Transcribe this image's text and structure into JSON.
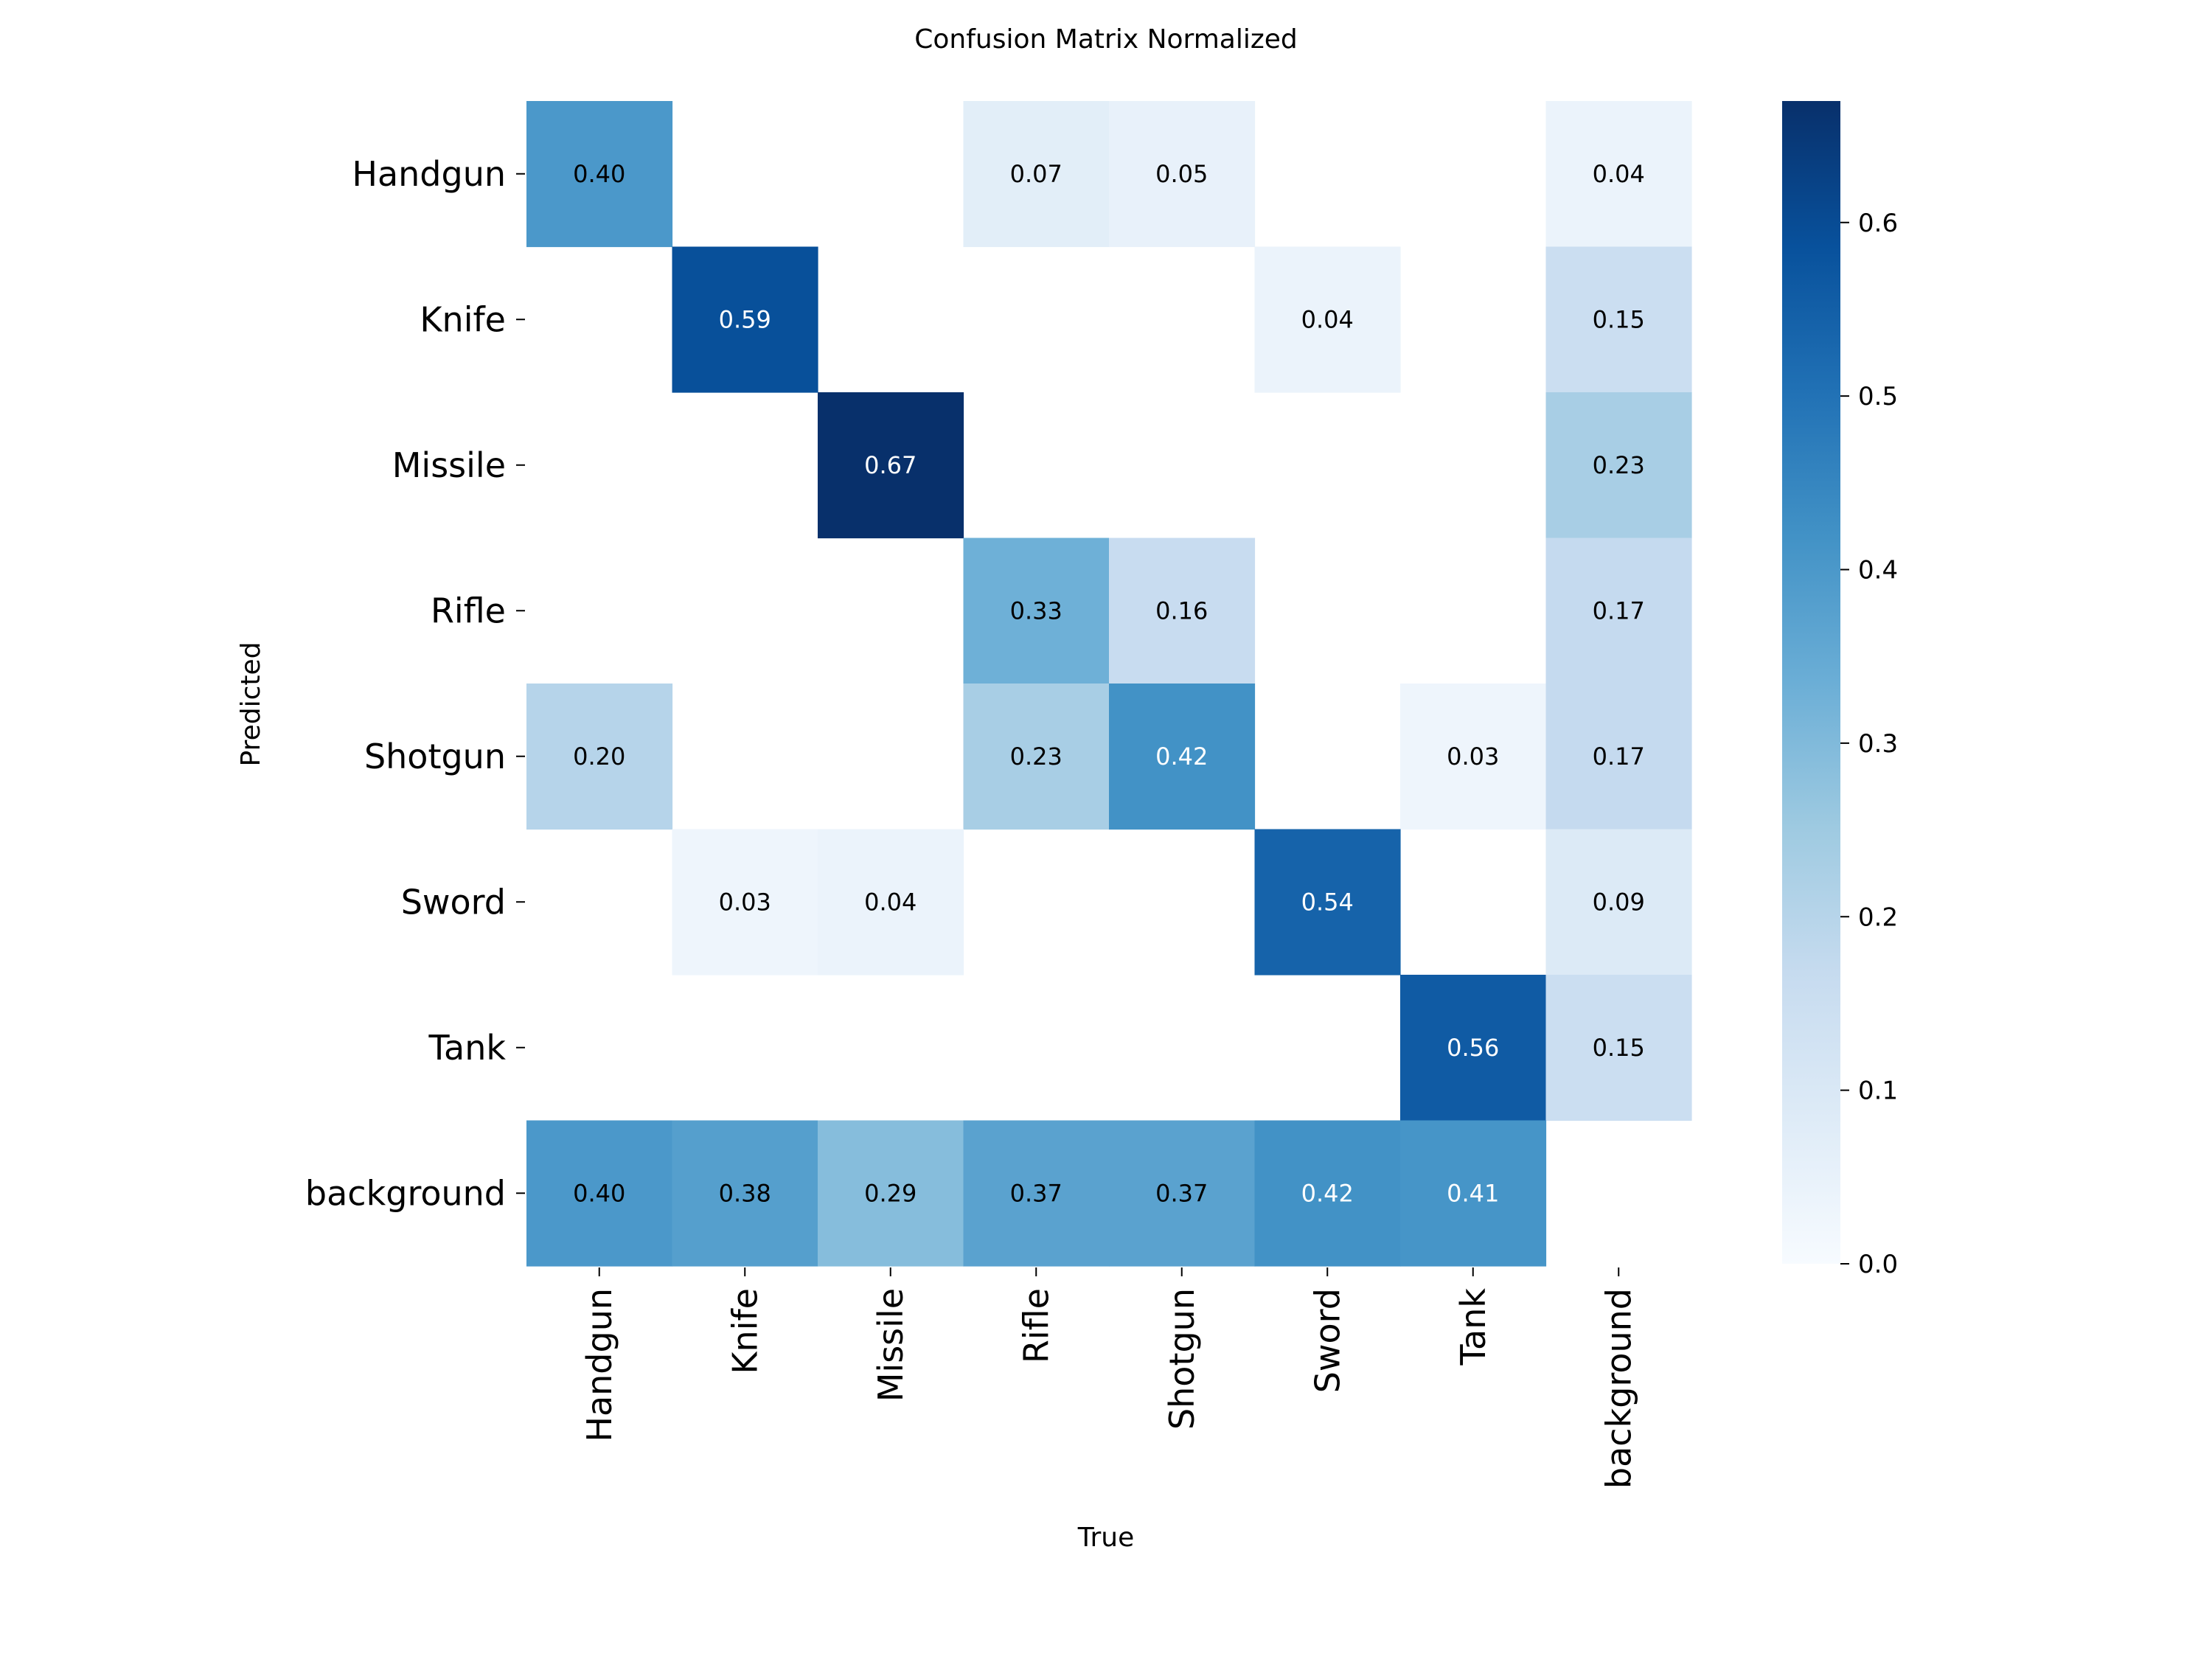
{
  "chart_data": {
    "type": "heatmap",
    "title": "Confusion Matrix Normalized",
    "xlabel": "True",
    "ylabel": "Predicted",
    "x_categories": [
      "Handgun",
      "Knife",
      "Missile",
      "Rifle",
      "Shotgun",
      "Sword",
      "Tank",
      "background"
    ],
    "y_categories": [
      "Handgun",
      "Knife",
      "Missile",
      "Rifle",
      "Shotgun",
      "Sword",
      "Tank",
      "background"
    ],
    "values": [
      [
        0.4,
        null,
        null,
        0.07,
        0.05,
        null,
        null,
        0.04
      ],
      [
        null,
        0.59,
        null,
        null,
        null,
        0.04,
        null,
        0.15
      ],
      [
        null,
        null,
        0.67,
        null,
        null,
        null,
        null,
        0.23
      ],
      [
        null,
        null,
        null,
        0.33,
        0.16,
        null,
        null,
        0.17
      ],
      [
        0.2,
        null,
        null,
        0.23,
        0.42,
        null,
        0.03,
        0.17
      ],
      [
        null,
        0.03,
        0.04,
        null,
        null,
        0.54,
        null,
        0.09
      ],
      [
        null,
        null,
        null,
        null,
        null,
        null,
        0.56,
        0.15
      ],
      [
        0.4,
        0.38,
        0.29,
        0.37,
        0.37,
        0.42,
        0.41,
        null
      ]
    ],
    "colorscale": "Blues",
    "vmin": 0.0,
    "vmax": 0.67,
    "colorbar_ticks": [
      0.0,
      0.1,
      0.2,
      0.3,
      0.4,
      0.5,
      0.6
    ],
    "colorbar_tick_labels": [
      "0.0",
      "0.1",
      "0.2",
      "0.3",
      "0.4",
      "0.5",
      "0.6"
    ]
  }
}
